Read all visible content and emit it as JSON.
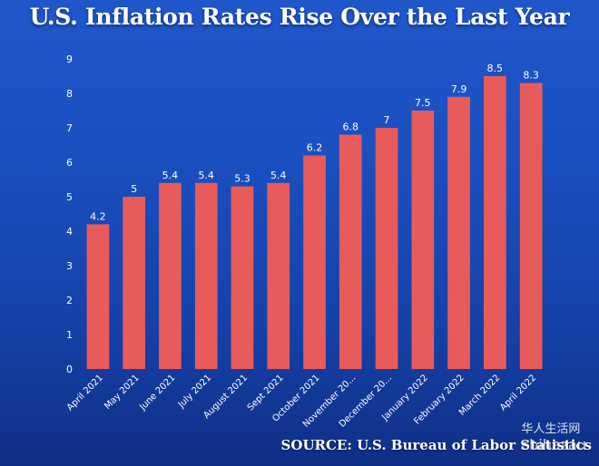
{
  "chart_data": {
    "type": "bar",
    "title": "U.S. Inflation Rates Rise Over the Last Year",
    "xlabel": "",
    "ylabel": "",
    "categories": [
      "April 2021",
      "May 2021",
      "June 2021",
      "July 2021",
      "August 2021",
      "Sept 2021",
      "October 2021",
      "November 20...",
      "December 20...",
      "January 2022",
      "February 2022",
      "March 2022",
      "April 2022"
    ],
    "values": [
      4.2,
      5,
      5.4,
      5.4,
      5.3,
      5.4,
      6.2,
      6.8,
      7,
      7.5,
      7.9,
      8.5,
      8.3
    ],
    "ylim": [
      0,
      9
    ],
    "yticks": [
      0,
      1,
      2,
      3,
      4,
      5,
      6,
      7,
      8,
      9
    ],
    "grid": false,
    "legend": "none",
    "bar_color": "#e85b5b",
    "background_color": "#1a4fbf"
  },
  "source": "SOURCE: U.S. Bureau of Labor Statistics",
  "watermark": {
    "line1": "华人生活网",
    "line2": "chihazau"
  }
}
